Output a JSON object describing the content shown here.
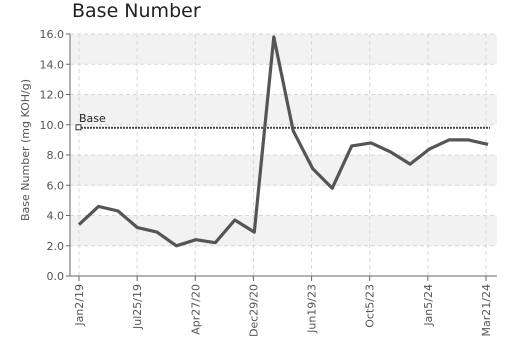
{
  "chart_data": {
    "type": "line",
    "title": "Base Number",
    "ylabel": "Base Number (mg KOH/g)",
    "xlabel": "",
    "ylim": [
      0,
      16
    ],
    "yticks": [
      "0.0",
      "2.0",
      "4.0",
      "6.0",
      "8.0",
      "10.0",
      "12.0",
      "14.0",
      "16.0"
    ],
    "xtick_labels": [
      "Jan2/19",
      "Jul25/19",
      "Apr27/20",
      "Dec29/20",
      "Jun19/23",
      "Oct5/23",
      "Jan5/24",
      "Mar21/24"
    ],
    "grid": true,
    "series": [
      {
        "values": [
          3.4,
          4.6,
          4.3,
          3.2,
          2.9,
          2.0,
          2.4,
          2.2,
          3.7,
          2.9,
          15.8,
          9.6,
          7.1,
          5.8,
          8.6,
          8.8,
          8.2,
          7.4,
          8.4,
          9.0,
          9.0,
          8.7
        ],
        "color": "#555555"
      }
    ],
    "reference_line": {
      "label": "Base",
      "value": 9.8,
      "color": "#444444"
    }
  }
}
